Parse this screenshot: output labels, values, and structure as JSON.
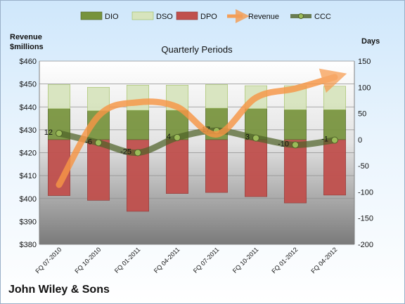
{
  "company_label": "John Wiley & Sons",
  "colors": {
    "dio": "#77933c",
    "dso": "#d7e4bd",
    "dpo": "#c0504d",
    "revenue": "#f79646",
    "ccc": "#4f6228"
  },
  "chart_data": {
    "type": "bar",
    "title": "Quarterly Periods",
    "y_left_label": "Revenue $millions",
    "y_right_label": "Days",
    "legend_position": "top",
    "legend": [
      "DIO",
      "DSO",
      "DPO",
      "Revenue",
      "CCC"
    ],
    "categories": [
      "FQ 07-2010",
      "FQ 10-2010",
      "FQ 01-2011",
      "FQ 04-2011",
      "FQ 07-2011",
      "FQ 10-2011",
      "FQ 01-2012",
      "FQ 04-2012"
    ],
    "y_left": {
      "min": 380,
      "max": 460,
      "ticks": [
        380,
        390,
        400,
        410,
        420,
        430,
        440,
        450,
        460
      ],
      "tick_labels": [
        "$380",
        "$390",
        "$400",
        "$410",
        "$420",
        "$430",
        "$440",
        "$450",
        "$460"
      ]
    },
    "y_right": {
      "min": -200,
      "max": 150,
      "ticks": [
        -200,
        -150,
        -100,
        -50,
        0,
        50,
        100,
        150
      ],
      "tick_labels": [
        "-200",
        "-150",
        "-100",
        "-50",
        "0",
        "50",
        "100",
        "150"
      ]
    },
    "series": [
      {
        "name": "DIO",
        "axis": "right",
        "values": [
          59,
          55,
          56,
          56,
          60,
          59,
          57,
          57
        ]
      },
      {
        "name": "DSO",
        "axis": "right",
        "values": [
          46,
          45,
          48,
          48,
          45,
          44,
          46,
          45
        ]
      },
      {
        "name": "DPO",
        "axis": "right",
        "values": [
          -107,
          -116,
          -137,
          -103,
          -101,
          -109,
          -121,
          -106
        ]
      },
      {
        "name": "Revenue",
        "axis": "left",
        "values": [
          406,
          436,
          442,
          440,
          428,
          444,
          448,
          453
        ]
      },
      {
        "name": "CCC",
        "axis": "right",
        "values": [
          12,
          -6,
          -25,
          4,
          17,
          3,
          -10,
          -1
        ]
      }
    ],
    "ccc_labels": [
      "12",
      "-6",
      "-25",
      "4",
      "17",
      "3",
      "-10",
      "-1"
    ]
  }
}
